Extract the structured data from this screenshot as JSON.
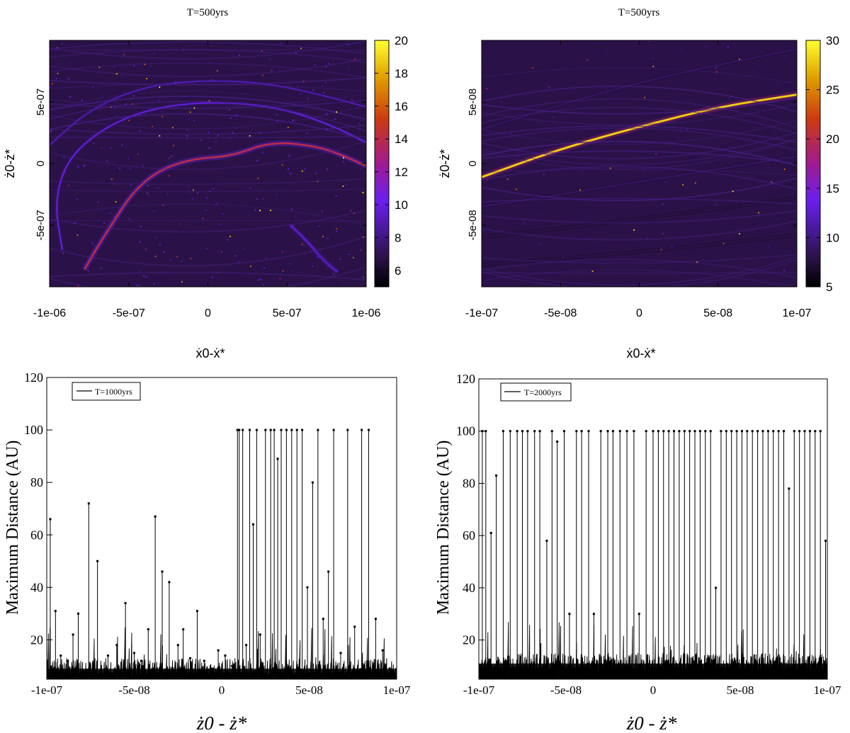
{
  "colors": {
    "map_low": "#0a0418",
    "map_background": "#2a1248",
    "map_mid": "#6a1ff0",
    "map_high": "#e0a000",
    "map_peak": "#ffff30",
    "line": "#000000"
  },
  "chart_data": [
    {
      "type": "heatmap",
      "title": "T=500yrs",
      "xlabel": "ẋ0-ẋ*",
      "ylabel": "ż0-ż*",
      "xlim": [
        -1e-06,
        1e-06
      ],
      "ylim": [
        -1e-06,
        1e-06
      ],
      "x_ticks": [
        -1e-06,
        -5e-07,
        0,
        5e-07,
        1e-06
      ],
      "x_tick_labels": [
        "-1e-06",
        "-5e-07",
        "0",
        "5e-07",
        "1e-06"
      ],
      "y_ticks": [
        -5e-07,
        0,
        5e-07
      ],
      "y_tick_labels": [
        "-5e-07",
        "0",
        "5e-07"
      ],
      "colorbar": {
        "min": 5,
        "max": 20,
        "ticks": [
          6,
          8,
          10,
          12,
          14,
          16,
          18,
          20
        ]
      },
      "background_value": 6,
      "features": [
        {
          "kind": "ridge",
          "value": 14,
          "width": 2.6,
          "points": [
            [
              -7.8e-07,
              -8.6e-07
            ],
            [
              -7e-07,
              -6.8e-07
            ],
            [
              -6e-07,
              -4.8e-07
            ],
            [
              -4.8e-07,
              -2.4e-07
            ],
            [
              -3.2e-07,
              -6e-08
            ],
            [
              -1e-07,
              4e-08
            ],
            [
              1.5e-07,
              6e-08
            ],
            [
              4e-07,
              1.8e-07
            ],
            [
              7e-07,
              1.4e-07
            ],
            [
              9e-07,
              4e-08
            ],
            [
              1e-06,
              -2e-08
            ]
          ]
        },
        {
          "kind": "ridge",
          "value": 10,
          "width": 2,
          "points": [
            [
              -9.2e-07,
              -7e-07
            ],
            [
              -9.7e-07,
              -3e-07
            ],
            [
              -8.8e-07,
              6e-08
            ],
            [
              -6e-07,
              3.4e-07
            ],
            [
              -2.5e-07,
              4.8e-07
            ],
            [
              1.5e-07,
              5e-07
            ],
            [
              5e-07,
              4.4e-07
            ],
            [
              8e-07,
              3e-07
            ],
            [
              1e-06,
              1.7e-07
            ]
          ]
        },
        {
          "kind": "ridge",
          "value": 9,
          "width": 2,
          "points": [
            [
              -1e-06,
              1.5e-07
            ],
            [
              -7.5e-07,
              4.4e-07
            ],
            [
              -4e-07,
              6.3e-07
            ],
            [
              0,
              6.8e-07
            ],
            [
              4e-07,
              6.5e-07
            ],
            [
              8e-07,
              5.3e-07
            ],
            [
              1e-06,
              4.6e-07
            ]
          ]
        },
        {
          "kind": "ridge",
          "value": 9,
          "width": 4,
          "points": [
            [
              5.2e-07,
              -5e-07
            ],
            [
              6.2e-07,
              -6.2e-07
            ],
            [
              7.4e-07,
              -8e-07
            ],
            [
              8.2e-07,
              -8.8e-07
            ]
          ]
        }
      ]
    },
    {
      "type": "heatmap",
      "title": "T=500yrs",
      "xlabel": "ẋ0-ẋ*",
      "ylabel": "ż0-ż*",
      "xlim": [
        -1e-07,
        1e-07
      ],
      "ylim": [
        -1e-07,
        1e-07
      ],
      "x_ticks": [
        -1e-07,
        -5e-08,
        0,
        5e-08,
        1e-07
      ],
      "x_tick_labels": [
        "-1e-07",
        "-5e-08",
        "0",
        "5e-08",
        "1e-07"
      ],
      "y_ticks": [
        -5e-08,
        0,
        5e-08
      ],
      "y_tick_labels": [
        "-5e-08",
        "0",
        "5e-08"
      ],
      "colorbar": {
        "min": 5,
        "max": 30,
        "ticks": [
          5,
          10,
          15,
          20,
          25,
          30
        ]
      },
      "background_value": 6,
      "features": [
        {
          "kind": "ridge",
          "value": 28,
          "width": 3,
          "points": [
            [
              -1e-07,
              -1.1e-08
            ],
            [
              -5e-08,
              1.2e-08
            ],
            [
              0,
              3e-08
            ],
            [
              5e-08,
              4.6e-08
            ],
            [
              1e-07,
              5.6e-08
            ]
          ]
        },
        {
          "kind": "ridge",
          "value": 9,
          "width": 2,
          "points": [
            [
              -1e-07,
              2.8e-08
            ],
            [
              0,
              6.7e-08
            ],
            [
              1e-07,
              9.3e-08
            ]
          ]
        },
        {
          "kind": "ridge",
          "value": 9,
          "width": 2,
          "points": [
            [
              -1e-07,
              -3.5e-08
            ],
            [
              0,
              -1.5e-08
            ],
            [
              1e-07,
              6e-09
            ]
          ]
        },
        {
          "kind": "ridge",
          "value": 8,
          "width": 2,
          "points": [
            [
              -1e-07,
              -6e-08
            ],
            [
              0,
              -4.5e-08
            ],
            [
              1e-07,
              -2.8e-08
            ]
          ]
        },
        {
          "kind": "ridge",
          "value": 8,
          "width": 2,
          "points": [
            [
              -1e-07,
              -8.2e-08
            ],
            [
              0,
              -7.2e-08
            ],
            [
              1e-07,
              -5.8e-08
            ]
          ]
        }
      ]
    },
    {
      "type": "line",
      "legend": "T=1000yrs",
      "legend_position": "top-left",
      "xlabel": "ż0 - ż*",
      "ylabel": "Maximum Distance (AU)",
      "xlim": [
        -1e-07,
        1e-07
      ],
      "ylim": [
        5,
        120
      ],
      "x_ticks": [
        -1e-07,
        -5e-08,
        0,
        5e-08,
        1e-07
      ],
      "x_tick_labels": [
        "-1e-07",
        "-5e-08",
        "0",
        "5e-08",
        "1e-07"
      ],
      "y_ticks": [
        20,
        40,
        60,
        80,
        100,
        120
      ],
      "y_tick_labels": [
        "20",
        "40",
        "60",
        "80",
        "100",
        "120"
      ],
      "baseline": 7,
      "x": [
        -9.8e-08,
        -9.5e-08,
        -9.2e-08,
        -8.8e-08,
        -8.5e-08,
        -8.2e-08,
        -7.6e-08,
        -7.1e-08,
        -6.5e-08,
        -6e-08,
        -5.5e-08,
        -5e-08,
        -4.6e-08,
        -4.2e-08,
        -3.8e-08,
        -3.4e-08,
        -3e-08,
        -2.5e-08,
        -2.2e-08,
        -1.8e-08,
        -1.4e-08,
        -1e-08,
        -6e-09,
        -2e-09,
        2e-09,
        6e-09,
        9e-09,
        1e-08,
        1.2e-08,
        1.4e-08,
        1.6e-08,
        1.8e-08,
        2e-08,
        2.2e-08,
        2.5e-08,
        2.8e-08,
        3e-08,
        3.2e-08,
        3.4e-08,
        3.7e-08,
        4e-08,
        4.3e-08,
        4.6e-08,
        4.9e-08,
        5.2e-08,
        5.5e-08,
        5.8e-08,
        6.1e-08,
        6.4e-08,
        6.8e-08,
        7.2e-08,
        7.6e-08,
        8e-08,
        8.4e-08,
        8.8e-08,
        9.2e-08,
        9.6e-08
      ],
      "values": [
        66,
        31,
        14,
        12,
        22,
        30,
        72,
        50,
        14,
        18,
        34,
        15,
        12,
        24,
        67,
        46,
        42,
        18,
        24,
        13,
        31,
        12,
        9,
        16,
        14,
        10,
        100,
        100,
        100,
        18,
        100,
        64,
        100,
        22,
        100,
        100,
        100,
        89,
        100,
        100,
        100,
        100,
        100,
        40,
        80,
        100,
        28,
        46,
        100,
        15,
        100,
        25,
        100,
        100,
        28,
        16,
        9
      ]
    },
    {
      "type": "line",
      "legend": "T=2000yrs",
      "legend_position": "top-left",
      "xlabel": "ż0 - ż*",
      "ylabel": "Maximum Distance (AU)",
      "xlim": [
        -1e-07,
        1e-07
      ],
      "ylim": [
        5,
        120
      ],
      "x_ticks": [
        -1e-07,
        -5e-08,
        0,
        5e-08,
        1e-07
      ],
      "x_tick_labels": [
        "-1e-07",
        "-5e-08",
        "0",
        "5e-08",
        "1e-07"
      ],
      "y_ticks": [
        20,
        40,
        60,
        80,
        100,
        120
      ],
      "y_tick_labels": [
        "20",
        "40",
        "60",
        "80",
        "100",
        "120"
      ],
      "baseline": 9,
      "x": [
        -9.8e-08,
        -9.6e-08,
        -9.3e-08,
        -9e-08,
        -8.6e-08,
        -8.2e-08,
        -7.8e-08,
        -7.5e-08,
        -7.2e-08,
        -6.8e-08,
        -6.5e-08,
        -6.1e-08,
        -5.8e-08,
        -5.5e-08,
        -5.1e-08,
        -4.8e-08,
        -4.4e-08,
        -4.1e-08,
        -3.7e-08,
        -3.4e-08,
        -3e-08,
        -2.6e-08,
        -2.3e-08,
        -1.9e-08,
        -1.5e-08,
        -1.1e-08,
        -8e-09,
        -4e-09,
        0,
        3e-09,
        6e-09,
        9e-09,
        1.2e-08,
        1.5e-08,
        1.8e-08,
        2.1e-08,
        2.4e-08,
        2.7e-08,
        3e-08,
        3.3e-08,
        3.6e-08,
        3.9e-08,
        4.2e-08,
        4.5e-08,
        4.8e-08,
        5.1e-08,
        5.4e-08,
        5.7e-08,
        6e-08,
        6.3e-08,
        6.6e-08,
        6.9e-08,
        7.2e-08,
        7.5e-08,
        7.8e-08,
        8.1e-08,
        8.4e-08,
        8.7e-08,
        9e-08,
        9.3e-08,
        9.6e-08,
        9.9e-08
      ],
      "values": [
        100,
        100,
        61,
        83,
        100,
        100,
        100,
        100,
        100,
        100,
        100,
        58,
        100,
        96,
        100,
        30,
        100,
        100,
        100,
        30,
        100,
        100,
        100,
        100,
        100,
        100,
        30,
        100,
        100,
        100,
        100,
        100,
        100,
        100,
        100,
        100,
        100,
        100,
        100,
        100,
        40,
        100,
        100,
        100,
        100,
        100,
        100,
        100,
        100,
        100,
        100,
        100,
        100,
        100,
        78,
        100,
        100,
        100,
        100,
        100,
        100,
        58
      ]
    }
  ]
}
